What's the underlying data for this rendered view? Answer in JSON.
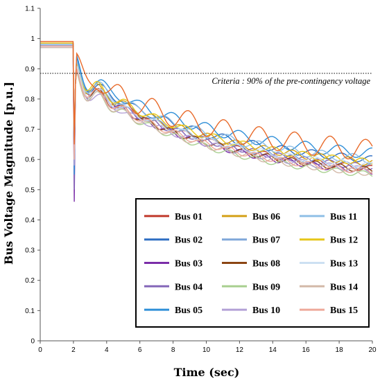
{
  "chart_data": {
    "type": "line",
    "xlabel": "Time (sec)",
    "ylabel": "Bus Voltage Magnitude [p.u.]",
    "xlim": [
      0,
      20
    ],
    "ylim": [
      0,
      1.1
    ],
    "x_ticks": [
      0,
      2,
      4,
      6,
      8,
      10,
      12,
      14,
      16,
      18,
      20
    ],
    "y_ticks": [
      0,
      0.1,
      0.2,
      0.3,
      0.4,
      0.5,
      0.6,
      0.7,
      0.8,
      0.9,
      1,
      1.1
    ],
    "y_tick_labels": [
      "0",
      "0.1",
      "0.2",
      "0.3",
      "0.4",
      "0.5",
      "0.6",
      "0.7",
      "0.8",
      "0.9",
      "1",
      "1.1"
    ],
    "grid": false,
    "legend_position": "bottom-right",
    "legend_columns": 3,
    "annotation": {
      "text": "Criteria : 90% of the pre-contingency voltage",
      "value": 0.885
    },
    "contingency_time": 2,
    "series": [
      {
        "name": "Bus 01",
        "color": "#c0392b",
        "pre": 0.985,
        "dip": 0.6,
        "start": 0.88,
        "end": 0.57,
        "osc": 0.01,
        "freq": 1.0,
        "phase": 0.3
      },
      {
        "name": "Bus 02",
        "color": "#2e6ec2",
        "pre": 0.98,
        "dip": 0.64,
        "start": 0.89,
        "end": 0.6,
        "osc": 0.012,
        "freq": 0.9,
        "phase": 1.0
      },
      {
        "name": "Bus 03",
        "color": "#7b2da8",
        "pre": 0.975,
        "dip": 0.46,
        "start": 0.87,
        "end": 0.56,
        "osc": 0.01,
        "freq": 1.1,
        "phase": 2.0
      },
      {
        "name": "Bus 04",
        "color": "#8466b8",
        "pre": 0.975,
        "dip": 0.5,
        "start": 0.87,
        "end": 0.575,
        "osc": 0.01,
        "freq": 1.05,
        "phase": 0.7
      },
      {
        "name": "Bus 05",
        "color": "#2f8fd8",
        "pre": 0.98,
        "dip": 0.55,
        "start": 0.9,
        "end": 0.62,
        "osc": 0.018,
        "freq": 0.8,
        "phase": 1.6
      },
      {
        "name": "Bus 06",
        "color": "#d4a017",
        "pre": 0.985,
        "dip": 0.62,
        "start": 0.88,
        "end": 0.59,
        "osc": 0.012,
        "freq": 0.95,
        "phase": 2.6
      },
      {
        "name": "Bus 07",
        "color": "#7fa7d9",
        "pre": 0.98,
        "dip": 0.63,
        "start": 0.88,
        "end": 0.575,
        "osc": 0.01,
        "freq": 1.0,
        "phase": 0.1
      },
      {
        "name": "Bus 08",
        "color": "#8b4513",
        "pre": 0.985,
        "dip": 0.62,
        "start": 0.87,
        "end": 0.565,
        "osc": 0.01,
        "freq": 1.1,
        "phase": 1.3
      },
      {
        "name": "Bus 09",
        "color": "#a8cf8f",
        "pre": 0.97,
        "dip": 0.6,
        "start": 0.86,
        "end": 0.55,
        "osc": 0.01,
        "freq": 1.0,
        "phase": 2.2
      },
      {
        "name": "Bus 10",
        "color": "#b3a0d6",
        "pre": 0.97,
        "dip": 0.58,
        "start": 0.86,
        "end": 0.565,
        "osc": 0.01,
        "freq": 0.95,
        "phase": 0.5
      },
      {
        "name": "Bus 11",
        "color": "#8fbfe6",
        "pre": 0.98,
        "dip": 0.6,
        "start": 0.89,
        "end": 0.6,
        "osc": 0.014,
        "freq": 0.85,
        "phase": 1.9
      },
      {
        "name": "Bus 12",
        "color": "#e6c619",
        "pre": 0.985,
        "dip": 0.63,
        "start": 0.89,
        "end": 0.59,
        "osc": 0.012,
        "freq": 0.9,
        "phase": 2.9
      },
      {
        "name": "Bus 13",
        "color": "#cde0f2",
        "pre": 0.97,
        "dip": 0.6,
        "start": 0.87,
        "end": 0.58,
        "osc": 0.01,
        "freq": 1.0,
        "phase": 0.9
      },
      {
        "name": "Bus 14",
        "color": "#d3b9a8",
        "pre": 0.97,
        "dip": 0.6,
        "start": 0.86,
        "end": 0.555,
        "osc": 0.01,
        "freq": 1.05,
        "phase": 1.7
      },
      {
        "name": "Bus 15",
        "color": "#eea99a",
        "pre": 0.975,
        "dip": 0.6,
        "start": 0.87,
        "end": 0.56,
        "osc": 0.01,
        "freq": 1.0,
        "phase": 2.4
      }
    ],
    "extra_series": [
      {
        "color": "#e86a2a",
        "pre": 0.99,
        "dip": 0.65,
        "start": 0.9,
        "end": 0.63,
        "osc": 0.035,
        "freq": 0.75,
        "phase": 0.0
      }
    ]
  }
}
